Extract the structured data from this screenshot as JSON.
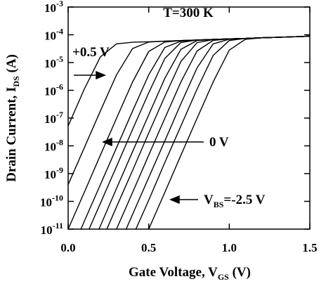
{
  "chart_data": {
    "type": "line",
    "xlabel": [
      "Gate Voltage, V",
      "GS",
      " (V)"
    ],
    "ylabel": [
      "Drain Current, I",
      "DS",
      " (A)"
    ],
    "annotations": [
      {
        "text": "T=300 K"
      },
      {
        "text": "+0.5 V"
      },
      {
        "text": "0 V"
      },
      {
        "parts": [
          "V",
          "BS",
          "=-2.5 V"
        ]
      }
    ],
    "yscale": "log",
    "xlim": [
      0,
      1.5
    ],
    "xticks": [
      {
        "value": 0,
        "label": "0.0"
      },
      0.5,
      {
        "value": 1,
        "label": "1.0"
      },
      1.5
    ],
    "ylim": [
      1e-11,
      0.001
    ],
    "yticks": [
      {
        "value": 1e-11,
        "label": "10-11"
      },
      {
        "value": 1e-10,
        "label": "10-10"
      },
      {
        "value": 1e-09,
        "label": "10-9"
      },
      {
        "value": 1e-08,
        "label": "10-8"
      },
      {
        "value": 1e-07,
        "label": "10-7"
      },
      {
        "value": 1e-06,
        "label": "10-6"
      },
      {
        "value": 1e-05,
        "label": "10-5"
      },
      {
        "value": 0.0001,
        "label": "10-4"
      },
      {
        "value": 0.001,
        "label": "10-3"
      }
    ],
    "grid": false,
    "x": [
      0,
      0.1,
      0.2,
      0.3,
      0.4,
      0.5,
      0.6,
      0.7,
      0.8,
      0.9,
      1,
      1.1,
      1.2,
      1.3,
      1.4,
      1.5
    ],
    "series": [
      {
        "color": "#000000",
        "values": [
          5.2e-08,
          1.1e-06,
          1.6e-05,
          4.7e-05,
          5.4e-05,
          5.6e-05,
          5.9e-05,
          6.2e-05,
          6.5e-05,
          6.8e-05,
          7.1e-05,
          7.4e-05,
          7.8e-05,
          8.1e-05,
          8.5e-05,
          8.9e-05
        ]
      },
      {
        "color": "#000000",
        "values": [
          4e-10,
          8.5e-09,
          1.8e-07,
          3.6e-06,
          3.2e-05,
          5.5e-05,
          5.9e-05,
          6.2e-05,
          6.5e-05,
          6.8e-05,
          7.1e-05,
          7.4e-05,
          7.8e-05,
          8.1e-05,
          8.5e-05,
          8.9e-05
        ]
      },
      {
        "color": "#000000",
        "values": [
          1e-11,
          2.1e-10,
          4.6e-09,
          9.8e-08,
          2e-06,
          2.5e-05,
          5.5e-05,
          6.2e-05,
          6.5e-05,
          6.8e-05,
          7.1e-05,
          7.4e-05,
          7.8e-05,
          8.1e-05,
          8.5e-05,
          8.9e-05
        ]
      },
      {
        "color": "#000000",
        "values": [
          8.7e-13,
          1.9e-11,
          4e-10,
          8.5e-09,
          1.8e-07,
          3.6e-06,
          3.5e-05,
          5.9e-05,
          6.5e-05,
          6.8e-05,
          7.1e-05,
          7.4e-05,
          7.8e-05,
          8.1e-05,
          8.5e-05,
          8.9e-05
        ]
      },
      {
        "color": "#000000",
        "values": [
          null,
          4e-12,
          8.5e-11,
          1.8e-09,
          3.9e-08,
          8.1e-07,
          1.4e-05,
          5.3e-05,
          6.5e-05,
          6.8e-05,
          7.1e-05,
          7.4e-05,
          7.8e-05,
          8.1e-05,
          8.5e-05,
          8.9e-05
        ]
      },
      {
        "color": "#000000",
        "values": [
          null,
          6.3e-13,
          1.3e-11,
          2.9e-10,
          6.2e-09,
          1.3e-07,
          2.7e-06,
          3e-05,
          6.2e-05,
          6.8e-05,
          7.1e-05,
          7.4e-05,
          7.8e-05,
          8.1e-05,
          8.5e-05,
          8.9e-05
        ]
      },
      {
        "color": "#000000",
        "values": [
          null,
          null,
          2.9e-12,
          6.3e-11,
          1.3e-09,
          2.9e-08,
          6e-07,
          1.1e-05,
          5.2e-05,
          6.7e-05,
          7.1e-05,
          7.4e-05,
          7.8e-05,
          8.1e-05,
          8.5e-05,
          8.9e-05
        ]
      },
      {
        "color": "#000000",
        "values": [
          null,
          null,
          null,
          1e-11,
          2.1e-10,
          4.6e-09,
          9.8e-08,
          2e-06,
          2.6e-05,
          6.3e-05,
          7.1e-05,
          7.4e-05,
          7.8e-05,
          8.1e-05,
          8.5e-05,
          8.9e-05
        ]
      },
      {
        "color": "#000000",
        "values": [
          null,
          null,
          null,
          1.6e-12,
          3.4e-11,
          7.2e-10,
          1.5e-08,
          3.3e-07,
          6.4e-06,
          4.7e-05,
          6.9e-05,
          7.4e-05,
          7.8e-05,
          8.1e-05,
          8.5e-05,
          8.9e-05
        ]
      },
      {
        "color": "#000000",
        "values": [
          null,
          null,
          null,
          null,
          5.4e-12,
          1.1e-10,
          2.5e-09,
          5.2e-08,
          1.1e-06,
          1.8e-05,
          6.2e-05,
          7.4e-05,
          7.8e-05,
          8.1e-05,
          8.5e-05,
          8.9e-05
        ]
      },
      {
        "color": "#000000",
        "values": [
          null,
          null,
          null,
          null,
          null,
          1e-11,
          2.1e-10,
          4.6e-09,
          9.8e-08,
          2e-06,
          2.8e-05,
          6.9e-05,
          7.8e-05,
          8.1e-05,
          8.5e-05,
          8.9e-05
        ]
      }
    ]
  }
}
